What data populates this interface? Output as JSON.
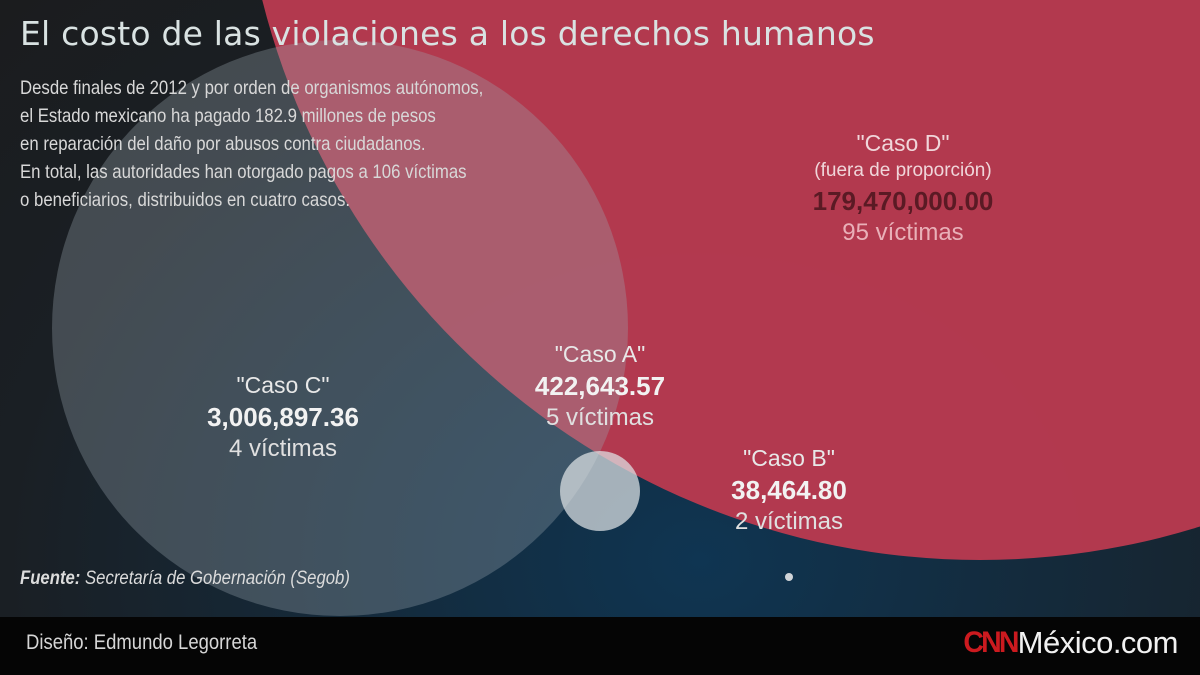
{
  "header": {
    "title": "El costo de las violaciones a los derechos humanos",
    "intro_lines": [
      "Desde finales de 2012 y por orden de organismos autónomos,",
      "el Estado mexicano ha pagado 182.9 millones de pesos",
      "en reparación del daño por abusos contra ciudadanos.",
      "En total, las autoridades han otorgado pagos a 106 víctimas",
      "o beneficiarios, distribuidos en cuatro casos."
    ]
  },
  "chart_data": {
    "type": "scatter",
    "encoding": "proportional circles (area ~ amount)",
    "series": [
      {
        "name": "\"Caso D\"",
        "note": "(fuera de proporción)",
        "amount_label": "179,470,000.00",
        "amount": 179470000.0,
        "victims_label": "95 víctimas",
        "victims": 95,
        "color": "#b83a4f"
      },
      {
        "name": "\"Caso C\"",
        "amount_label": "3,006,897.36",
        "amount": 3006897.36,
        "victims_label": "4 víctimas",
        "victims": 4,
        "color": "#6f7f88"
      },
      {
        "name": "\"Caso A\"",
        "amount_label": "422,643.57",
        "amount": 422643.57,
        "victims_label": "5 víctimas",
        "victims": 5,
        "color": "#d9dde0"
      },
      {
        "name": "\"Caso B\"",
        "amount_label": "38,464.80",
        "amount": 38464.8,
        "victims_label": "2 víctimas",
        "victims": 2,
        "color": "#d0d4d8"
      }
    ]
  },
  "source": {
    "prefix": "Fuente:",
    "text": " Secretaría de Gobernación (Segob)"
  },
  "footer": {
    "credit": "Diseño: Edmundo Legorreta",
    "logo_brand": "CNN",
    "logo_site": "México.com"
  },
  "colors": {
    "accent_red": "#b83a4f",
    "background": "#1b1c1e",
    "footer": "#050505"
  }
}
